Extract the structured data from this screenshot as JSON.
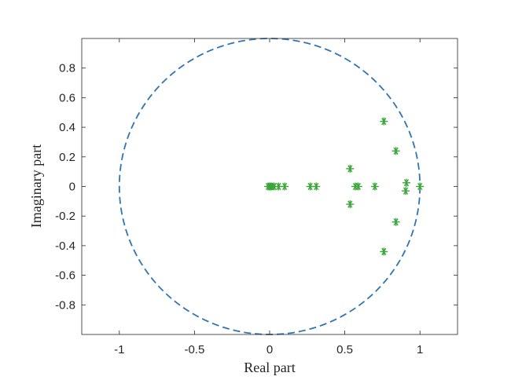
{
  "chart_data": {
    "type": "scatter",
    "title": "",
    "xlabel": "Real part",
    "ylabel": "Imaginary part",
    "xlim": [
      -1.25,
      1.25
    ],
    "ylim": [
      -1,
      1
    ],
    "x_ticks": [
      -1,
      -0.5,
      0,
      0.5,
      1
    ],
    "x_tick_labels": [
      "-1",
      "-0.5",
      "0",
      "0.5",
      "1"
    ],
    "y_ticks": [
      -0.8,
      -0.6,
      -0.4,
      -0.2,
      0,
      0.2,
      0.4,
      0.6,
      0.8
    ],
    "y_tick_labels": [
      "-0.8",
      "-0.6",
      "-0.4",
      "-0.2",
      "0",
      "0.2",
      "0.4",
      "0.6",
      "0.8"
    ],
    "grid": false,
    "unit_circle": {
      "center": [
        0,
        0
      ],
      "radius": 1,
      "style": "dashed",
      "color": "#2e75b6"
    },
    "marker_color": "#3aa639",
    "marker": "asterisk",
    "points": [
      {
        "x": 1.0,
        "y": 0.0
      },
      {
        "x": 0.91,
        "y": 0.025
      },
      {
        "x": 0.905,
        "y": -0.03
      },
      {
        "x": 0.84,
        "y": 0.24
      },
      {
        "x": 0.84,
        "y": -0.24
      },
      {
        "x": 0.76,
        "y": 0.44
      },
      {
        "x": 0.76,
        "y": -0.44
      },
      {
        "x": 0.7,
        "y": 0.0
      },
      {
        "x": 0.59,
        "y": 0.0
      },
      {
        "x": 0.57,
        "y": 0.0
      },
      {
        "x": 0.535,
        "y": 0.12
      },
      {
        "x": 0.535,
        "y": -0.12
      },
      {
        "x": 0.31,
        "y": 0.0
      },
      {
        "x": 0.27,
        "y": 0.0
      },
      {
        "x": 0.1,
        "y": 0.0
      },
      {
        "x": 0.06,
        "y": 0.0
      },
      {
        "x": 0.03,
        "y": 0.0
      },
      {
        "x": 0.015,
        "y": 0.0
      },
      {
        "x": 0.005,
        "y": 0.0
      },
      {
        "x": 0.0,
        "y": 0.0
      },
      {
        "x": -0.01,
        "y": 0.0
      }
    ]
  }
}
